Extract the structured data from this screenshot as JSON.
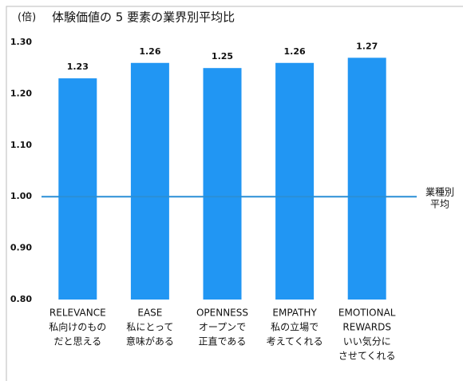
{
  "chart_data": {
    "type": "bar",
    "title": "体験価値の 5 要素の業界別平均比",
    "y_unit": "(倍)",
    "categories": [
      [
        "RELEVANCE",
        "私向けのもの",
        "だと思える"
      ],
      [
        "EASE",
        "私にとって",
        "意味がある"
      ],
      [
        "OPENNESS",
        "オープンで",
        "正直である"
      ],
      [
        "EMPATHY",
        "私の立場で",
        "考えてくれる"
      ],
      [
        "EMOTIONAL",
        "REWARDS",
        "いい気分に",
        "させてくれる"
      ]
    ],
    "values": [
      1.23,
      1.26,
      1.25,
      1.26,
      1.27
    ],
    "color": "#2196f3",
    "ylim": [
      0.8,
      1.3
    ],
    "yticks": [
      {
        "value": 0.8,
        "label": "0.80"
      },
      {
        "value": 0.9,
        "label": "0.90"
      },
      {
        "value": 1.0,
        "label": "1.00"
      },
      {
        "value": 1.1,
        "label": "1.10"
      },
      {
        "value": 1.2,
        "label": "1.20"
      },
      {
        "value": 1.3,
        "label": "1.30"
      }
    ],
    "grid": false,
    "reference_line": {
      "value": 1,
      "label": [
        "業種別",
        "平均"
      ],
      "color": "#2a8fd6"
    }
  }
}
